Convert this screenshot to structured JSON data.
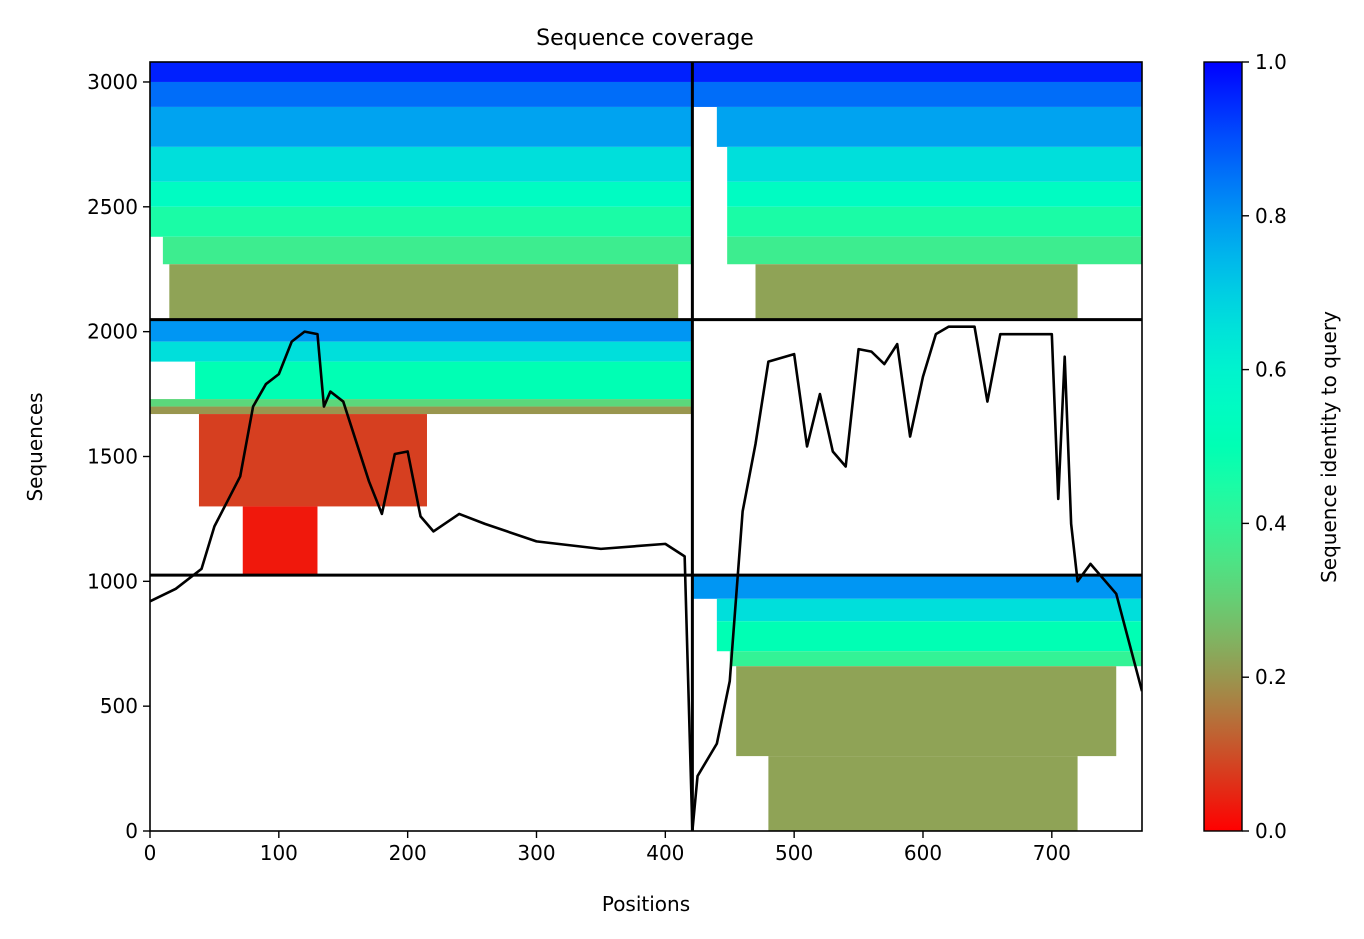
{
  "chart_data": {
    "type": "heatmap",
    "title": "Sequence coverage",
    "xlabel": "Positions",
    "ylabel": "Sequences",
    "xlim": [
      0,
      770
    ],
    "ylim": [
      0,
      3080
    ],
    "x_ticks": [
      0,
      100,
      200,
      300,
      400,
      500,
      600,
      700
    ],
    "y_ticks": [
      0,
      500,
      1000,
      1500,
      2000,
      2500,
      3000
    ],
    "chain_boundary_x": 421,
    "block_boundaries_y": [
      1025,
      2048
    ],
    "colorbar": {
      "label": "Sequence identity to query",
      "colormap": "rainbow_r",
      "range": [
        0.0,
        1.0
      ],
      "ticks": [
        0.0,
        0.2,
        0.4,
        0.6,
        0.8,
        1.0
      ]
    },
    "blocks": [
      {
        "x_range": [
          0,
          421
        ],
        "y_range": [
          2048,
          3080
        ],
        "bands": [
          {
            "y": [
              3000,
              3080
            ],
            "x": [
              0,
              421
            ],
            "identity": 0.96
          },
          {
            "y": [
              2900,
              3000
            ],
            "x": [
              0,
              421
            ],
            "identity": 0.86
          },
          {
            "y": [
              2740,
              2900
            ],
            "x": [
              0,
              421
            ],
            "identity": 0.78
          },
          {
            "y": [
              2600,
              2740
            ],
            "x": [
              0,
              421
            ],
            "identity": 0.66
          },
          {
            "y": [
              2500,
              2600
            ],
            "x": [
              0,
              421
            ],
            "identity": 0.55
          },
          {
            "y": [
              2380,
              2500
            ],
            "x": [
              0,
              421
            ],
            "identity": 0.45
          },
          {
            "y": [
              2270,
              2380
            ],
            "x": [
              10,
              421
            ],
            "identity": 0.38
          },
          {
            "y": [
              2048,
              2270
            ],
            "x": [
              15,
              410
            ],
            "identity": 0.22
          }
        ]
      },
      {
        "x_range": [
          421,
          770
        ],
        "y_range": [
          2048,
          3080
        ],
        "bands": [
          {
            "y": [
              3000,
              3080
            ],
            "x": [
              421,
              770
            ],
            "identity": 0.96
          },
          {
            "y": [
              2900,
              3000
            ],
            "x": [
              421,
              770
            ],
            "identity": 0.86
          },
          {
            "y": [
              2740,
              2900
            ],
            "x": [
              440,
              770
            ],
            "identity": 0.78
          },
          {
            "y": [
              2600,
              2740
            ],
            "x": [
              448,
              770
            ],
            "identity": 0.66
          },
          {
            "y": [
              2500,
              2600
            ],
            "x": [
              448,
              770
            ],
            "identity": 0.55
          },
          {
            "y": [
              2380,
              2500
            ],
            "x": [
              448,
              770
            ],
            "identity": 0.45
          },
          {
            "y": [
              2270,
              2380
            ],
            "x": [
              448,
              770
            ],
            "identity": 0.38
          },
          {
            "y": [
              2048,
              2270
            ],
            "x": [
              470,
              720
            ],
            "identity": 0.22
          }
        ]
      },
      {
        "x_range": [
          0,
          421
        ],
        "y_range": [
          1025,
          2048
        ],
        "bands": [
          {
            "y": [
              1960,
              2048
            ],
            "x": [
              0,
              421
            ],
            "identity": 0.8
          },
          {
            "y": [
              1880,
              1960
            ],
            "x": [
              0,
              421
            ],
            "identity": 0.66
          },
          {
            "y": [
              1730,
              1880
            ],
            "x": [
              35,
              421
            ],
            "identity": 0.5
          },
          {
            "y": [
              1700,
              1730
            ],
            "x": [
              0,
              421
            ],
            "identity": 0.32
          },
          {
            "y": [
              1670,
              1700
            ],
            "x": [
              0,
              421
            ],
            "identity": 0.2
          },
          {
            "y": [
              1300,
              1670
            ],
            "x": [
              38,
              215
            ],
            "identity": 0.08
          },
          {
            "y": [
              1025,
              1300
            ],
            "x": [
              72,
              130
            ],
            "identity": 0.03
          }
        ]
      },
      {
        "x_range": [
          421,
          770
        ],
        "y_range": [
          0,
          1025
        ],
        "bands": [
          {
            "y": [
              930,
              1025
            ],
            "x": [
              421,
              770
            ],
            "identity": 0.8
          },
          {
            "y": [
              840,
              930
            ],
            "x": [
              440,
              770
            ],
            "identity": 0.66
          },
          {
            "y": [
              720,
              840
            ],
            "x": [
              440,
              770
            ],
            "identity": 0.5
          },
          {
            "y": [
              660,
              720
            ],
            "x": [
              450,
              770
            ],
            "identity": 0.4
          },
          {
            "y": [
              300,
              660
            ],
            "x": [
              455,
              750
            ],
            "identity": 0.22
          },
          {
            "y": [
              0,
              300
            ],
            "x": [
              480,
              720
            ],
            "identity": 0.22
          }
        ]
      }
    ],
    "coverage_line": {
      "x": [
        0,
        20,
        40,
        50,
        60,
        70,
        80,
        90,
        100,
        110,
        120,
        130,
        135,
        140,
        150,
        170,
        180,
        190,
        200,
        210,
        220,
        240,
        260,
        300,
        350,
        400,
        415,
        421,
        425,
        440,
        450,
        460,
        470,
        480,
        500,
        510,
        520,
        530,
        540,
        550,
        560,
        570,
        580,
        590,
        600,
        610,
        620,
        640,
        650,
        660,
        700,
        705,
        710,
        715,
        720,
        730,
        750,
        770
      ],
      "y": [
        920,
        970,
        1050,
        1220,
        1320,
        1420,
        1700,
        1790,
        1830,
        1960,
        2000,
        1990,
        1700,
        1760,
        1720,
        1400,
        1270,
        1510,
        1520,
        1260,
        1200,
        1270,
        1230,
        1160,
        1130,
        1150,
        1100,
        0,
        220,
        350,
        600,
        1280,
        1550,
        1880,
        1910,
        1540,
        1750,
        1520,
        1460,
        1930,
        1920,
        1870,
        1950,
        1580,
        1820,
        1990,
        2020,
        2020,
        1720,
        1990,
        1990,
        1330,
        1900,
        1230,
        1000,
        1070,
        950,
        560
      ]
    }
  }
}
